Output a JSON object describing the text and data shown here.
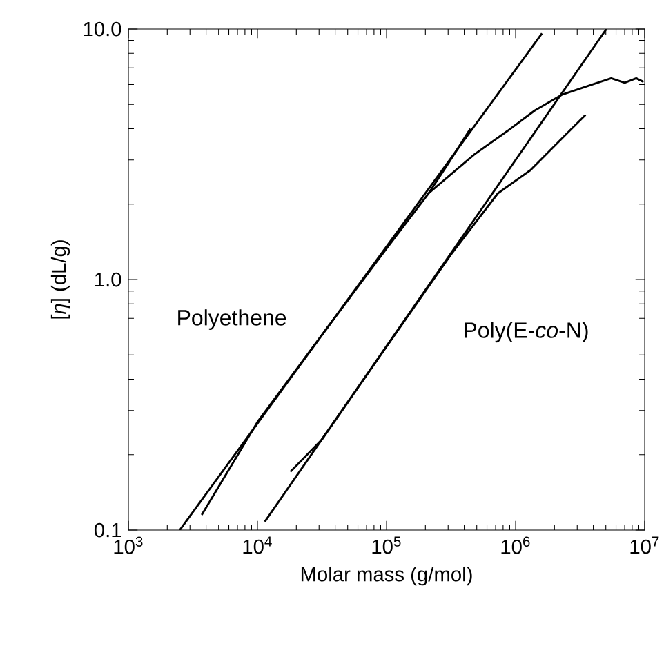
{
  "chart_data": {
    "type": "line",
    "xlabel": "Molar mass (g/mol)",
    "ylabel": "[*η*] (dL/g)",
    "log": "xy",
    "xlim": [
      1000,
      10000000
    ],
    "ylim": [
      0.1,
      10
    ],
    "xticks": [
      {
        "value": 1000,
        "label": "10$^{3}$"
      },
      {
        "value": 10000,
        "label": "10$^{4}$"
      },
      {
        "value": 100000,
        "label": "10$^{5}$"
      },
      {
        "value": 1000000,
        "label": "10$^{6}$"
      },
      {
        "value": 10000000,
        "label": "10$^{7}$"
      }
    ],
    "yticks": [
      0.1,
      {
        "value": 1,
        "label": "1.0"
      },
      {
        "value": 10,
        "label": "10.0"
      }
    ],
    "grid": false,
    "marker": "none",
    "line_style": "solid",
    "series": [
      {
        "color": "#000000",
        "x": [
          2500,
          1600000
        ],
        "values": [
          0.1,
          9.6
        ]
      },
      {
        "color": "#000000",
        "x": [
          11400,
          5050000
        ],
        "values": [
          0.108,
          10
        ]
      },
      {
        "color": "#000000",
        "x": [
          3700,
          10000,
          30000,
          100000,
          212000,
          480000,
          860000,
          1410000,
          2310000,
          3790000,
          5500000,
          7000000,
          8600000,
          9800000
        ],
        "values": [
          0.115,
          0.27,
          0.58,
          1.33,
          2.21,
          3.16,
          3.91,
          4.73,
          5.48,
          5.97,
          6.36,
          6.1,
          6.36,
          6.15
        ]
      },
      {
        "color": "#000000",
        "x": [
          212000,
          300000,
          446000
        ],
        "values": [
          2.21,
          2.9,
          4.0
        ]
      },
      {
        "color": "#000000",
        "x": [
          18000,
          31600,
          100000,
          316000,
          730000,
          1300000,
          2500000,
          3480000
        ],
        "values": [
          0.171,
          0.23,
          0.54,
          1.26,
          2.21,
          2.73,
          3.83,
          4.54
        ]
      }
    ],
    "annotations": [
      "Polyethene",
      "Poly(E-*co*-N)"
    ]
  }
}
